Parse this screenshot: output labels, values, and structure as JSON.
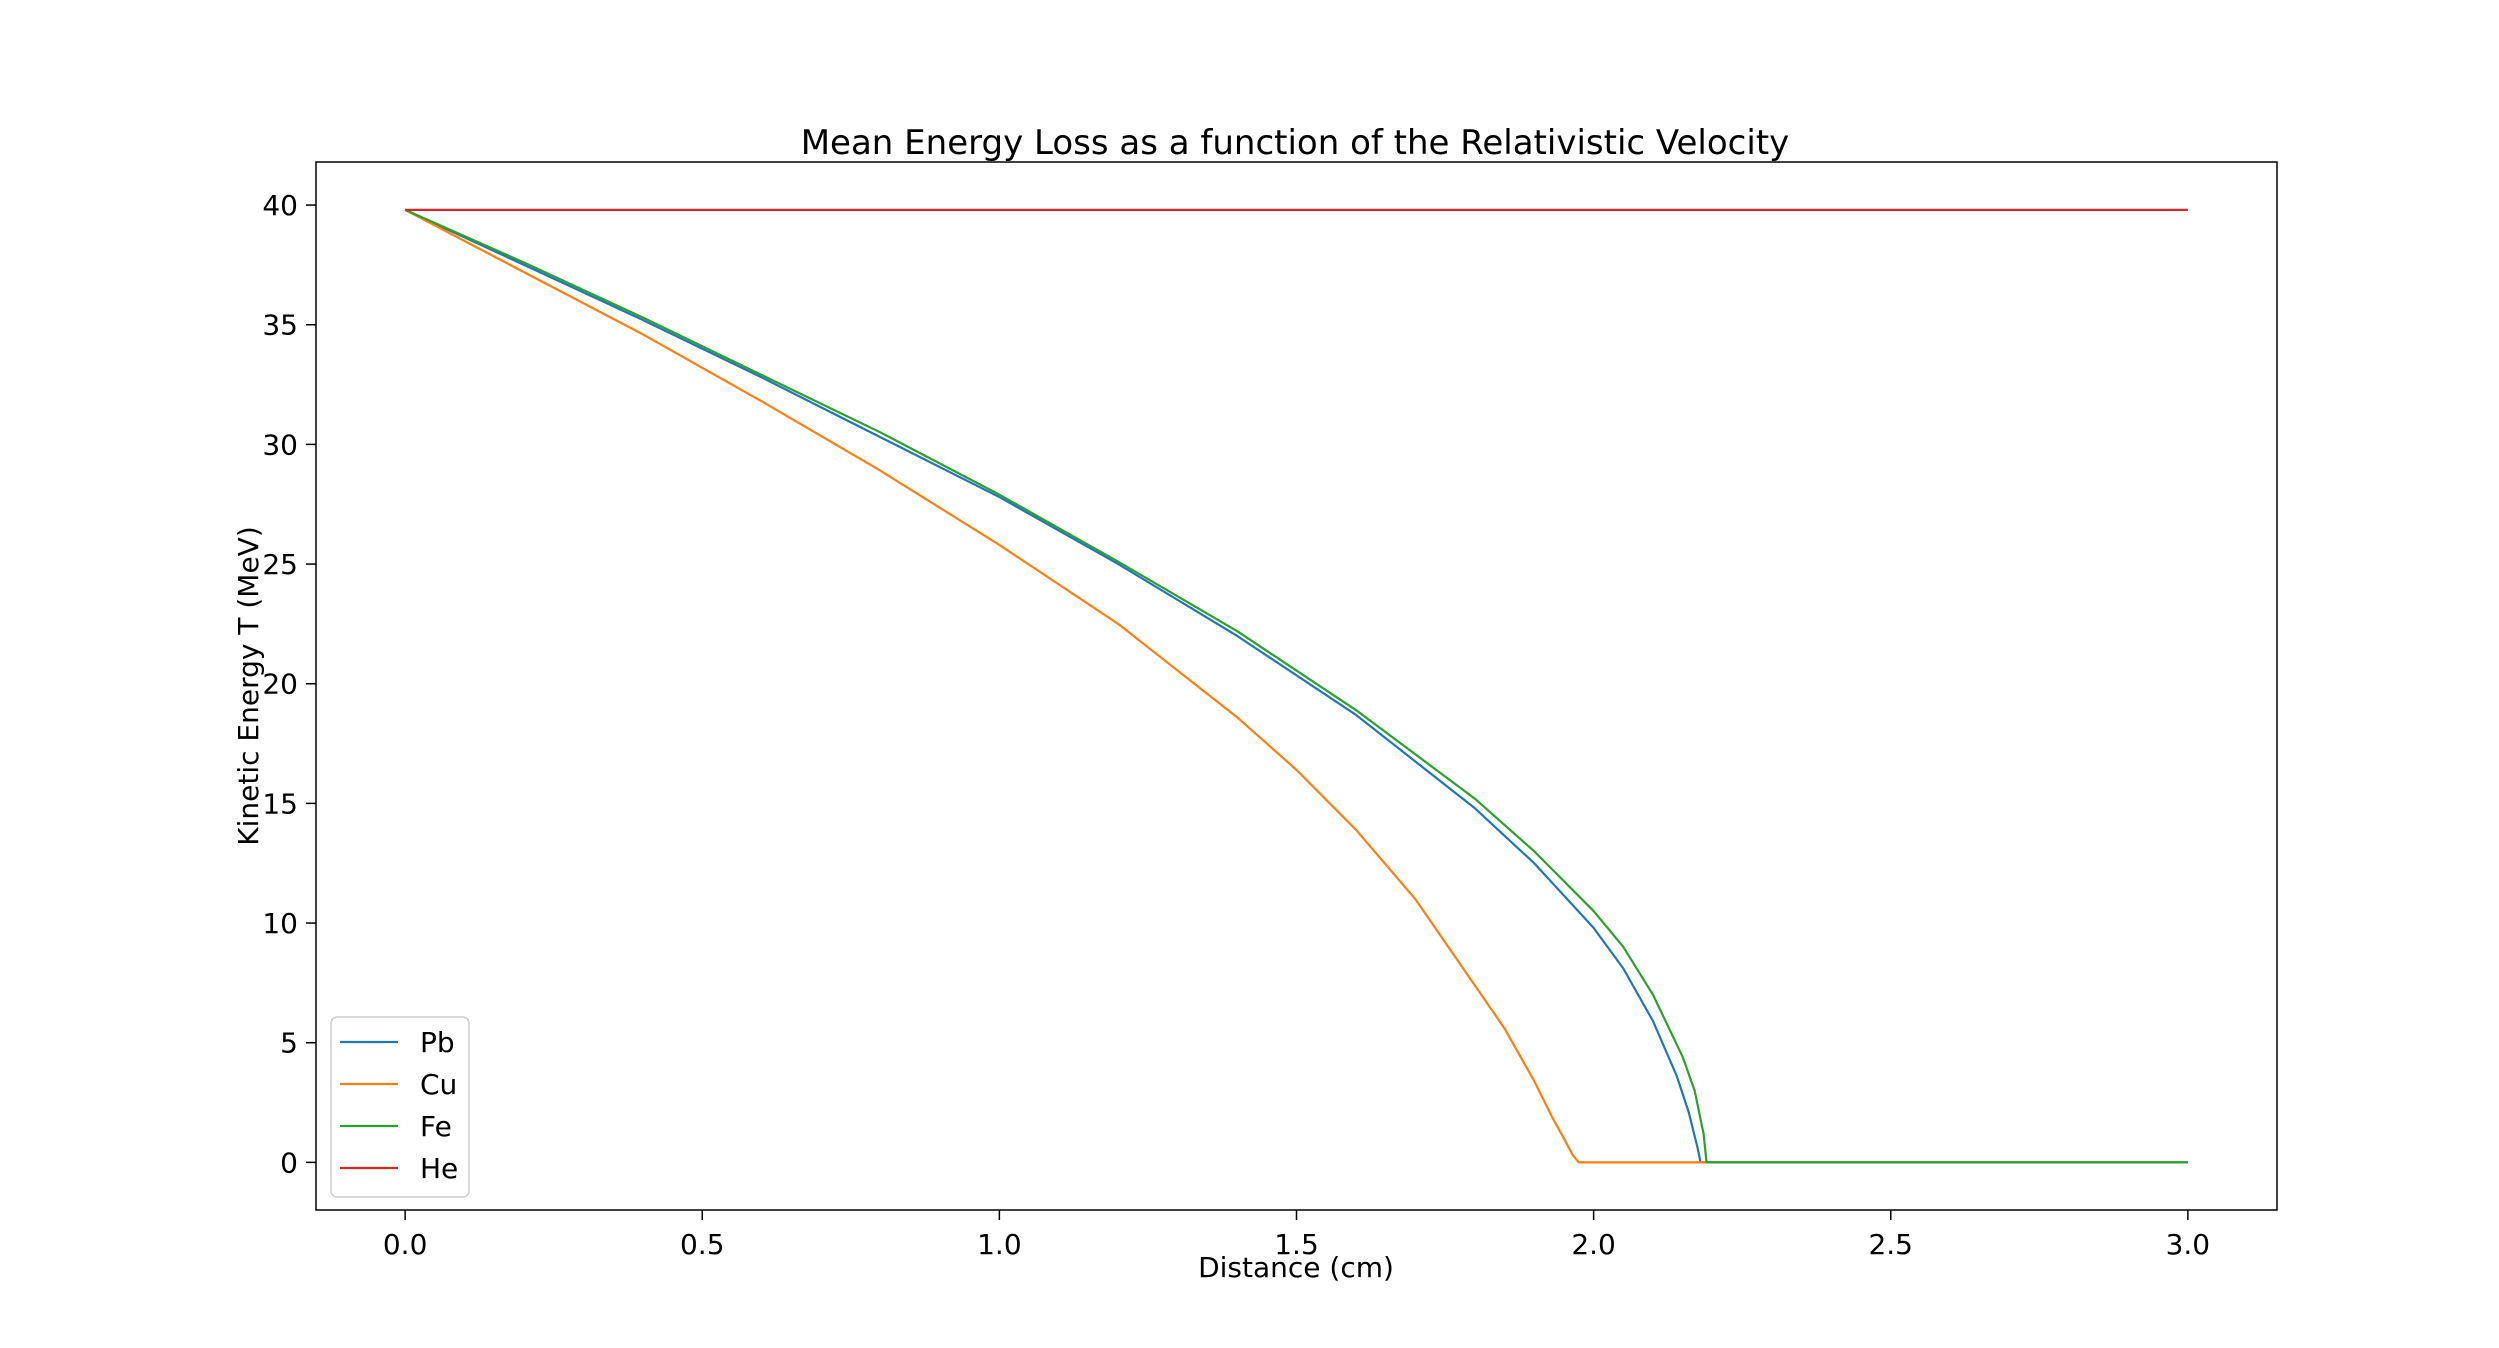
{
  "chart_data": {
    "type": "line",
    "title": "Mean Energy Loss as a function of the Relativistic Velocity",
    "xlabel": "Distance (cm)",
    "ylabel": "Kinetic Energy T (MeV)",
    "xlim": [
      -0.15,
      3.15
    ],
    "ylim": [
      -1.99,
      41.8
    ],
    "x_ticks": [
      0.0,
      0.5,
      1.0,
      1.5,
      2.0,
      2.5,
      3.0
    ],
    "x_tick_labels": [
      "0.0",
      "0.5",
      "1.0",
      "1.5",
      "2.0",
      "2.5",
      "3.0"
    ],
    "y_ticks": [
      0,
      5,
      10,
      15,
      20,
      25,
      30,
      35,
      40
    ],
    "y_tick_labels": [
      "0",
      "5",
      "10",
      "15",
      "20",
      "25",
      "30",
      "35",
      "40"
    ],
    "grid": false,
    "legend_position": "lower-left",
    "series": [
      {
        "name": "Pb",
        "color": "#1f77b4",
        "x": [
          0.0,
          0.2,
          0.4,
          0.6,
          0.8,
          1.0,
          1.2,
          1.4,
          1.6,
          1.8,
          1.9,
          2.0,
          2.05,
          2.1,
          2.14,
          2.16,
          2.175,
          2.18,
          3.0
        ],
        "y": [
          39.8,
          37.5,
          35.2,
          32.8,
          30.3,
          27.8,
          25.0,
          22.0,
          18.7,
          14.8,
          12.5,
          9.8,
          8.1,
          5.9,
          3.6,
          2.1,
          0.6,
          0.0,
          0.0
        ]
      },
      {
        "name": "Cu",
        "color": "#ff7f0e",
        "x": [
          0.0,
          0.2,
          0.4,
          0.6,
          0.8,
          1.0,
          1.2,
          1.4,
          1.5,
          1.6,
          1.7,
          1.8,
          1.85,
          1.9,
          1.93,
          1.95,
          1.965,
          1.975,
          3.0
        ],
        "y": [
          39.8,
          37.2,
          34.6,
          31.8,
          28.9,
          25.8,
          22.5,
          18.6,
          16.4,
          13.9,
          11.0,
          7.4,
          5.6,
          3.4,
          1.9,
          1.0,
          0.3,
          0.0,
          0.0
        ]
      },
      {
        "name": "Fe",
        "color": "#2ca02c",
        "x": [
          0.0,
          0.2,
          0.4,
          0.6,
          0.8,
          1.0,
          1.2,
          1.4,
          1.6,
          1.8,
          1.9,
          2.0,
          2.05,
          2.1,
          2.15,
          2.17,
          2.185,
          2.19,
          3.0
        ],
        "y": [
          39.8,
          37.6,
          35.3,
          32.9,
          30.5,
          27.9,
          25.1,
          22.2,
          18.9,
          15.2,
          13.0,
          10.5,
          9.0,
          7.0,
          4.4,
          3.0,
          1.2,
          0.0,
          0.0
        ]
      },
      {
        "name": "He",
        "color": "#d62728",
        "x": [
          0.0,
          3.0
        ],
        "y": [
          39.8,
          39.8
        ]
      }
    ]
  }
}
